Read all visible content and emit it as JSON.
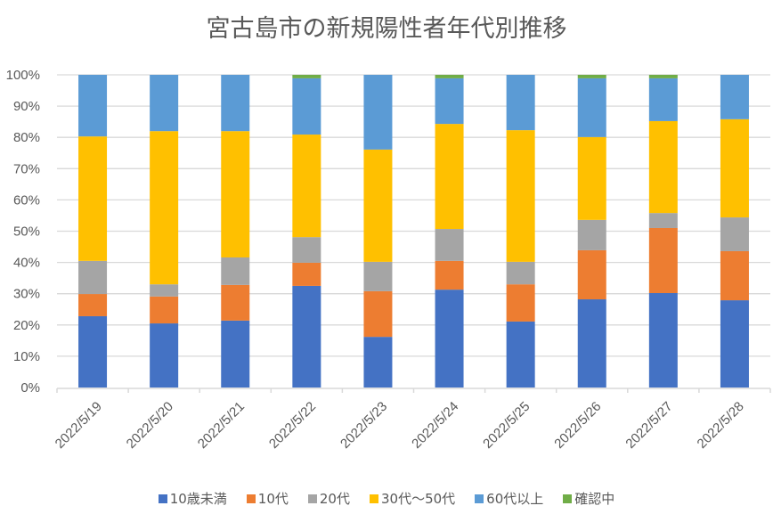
{
  "chart_data": {
    "type": "bar",
    "stacked": "percent",
    "title": "宮古島市の新規陽性者年代別推移",
    "xlabel": "",
    "ylabel": "",
    "ylim": [
      0,
      100
    ],
    "yticks": [
      "0%",
      "10%",
      "20%",
      "30%",
      "40%",
      "50%",
      "60%",
      "70%",
      "80%",
      "90%",
      "100%"
    ],
    "grid": true,
    "legend_position": "bottom",
    "categories": [
      "2022/5/19",
      "2022/5/20",
      "2022/5/21",
      "2022/5/22",
      "2022/5/23",
      "2022/5/24",
      "2022/5/25",
      "2022/5/26",
      "2022/5/27",
      "2022/5/28"
    ],
    "series": [
      {
        "name": "10歳未満",
        "color": "#4472C4",
        "values": [
          22.8,
          20.5,
          21.4,
          32.5,
          16.2,
          31.3,
          21.1,
          28.2,
          30.2,
          27.9
        ]
      },
      {
        "name": "10代",
        "color": "#ED7D31",
        "values": [
          7.1,
          8.6,
          11.4,
          7.4,
          14.6,
          9.2,
          11.9,
          15.7,
          20.8,
          15.7
        ]
      },
      {
        "name": "20代",
        "color": "#A5A5A5",
        "values": [
          10.6,
          3.9,
          8.8,
          8.2,
          9.4,
          10.2,
          7.2,
          9.7,
          4.8,
          10.8
        ]
      },
      {
        "name": "30代～50代",
        "color": "#FFC000",
        "values": [
          39.8,
          49.0,
          40.4,
          32.8,
          35.9,
          33.6,
          42.1,
          26.5,
          29.4,
          31.4
        ]
      },
      {
        "name": "60代以上",
        "color": "#5B9BD5",
        "values": [
          19.7,
          18.0,
          18.0,
          18.0,
          23.9,
          14.6,
          17.7,
          18.8,
          13.7,
          14.2
        ]
      },
      {
        "name": "確認中",
        "color": "#70AD47",
        "values": [
          0,
          0,
          0,
          1.1,
          0,
          1.1,
          0,
          1.1,
          1.1,
          0
        ]
      }
    ]
  }
}
